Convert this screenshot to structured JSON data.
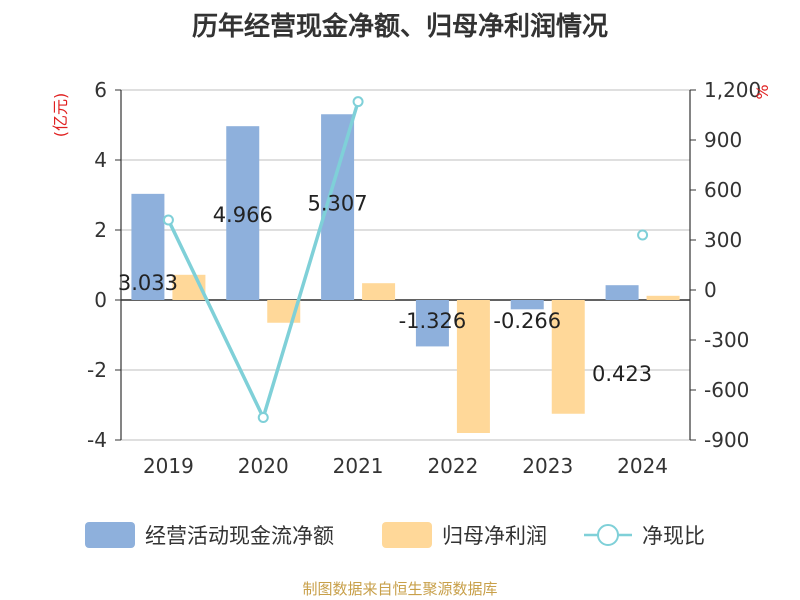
{
  "title": "历年经营现金净额、归母净利润情况",
  "source": "制图数据来自恒生聚源数据库",
  "chart_data": {
    "type": "bar",
    "title": "历年经营现金净额、归母净利润情况",
    "categories": [
      "2019",
      "2020",
      "2021",
      "2022",
      "2023",
      "2024"
    ],
    "left_axis": {
      "unit": "(亿元)",
      "ylim": [
        -4,
        6
      ],
      "ticks": [
        "-4",
        "-2",
        "0",
        "2",
        "4",
        "6"
      ]
    },
    "right_axis": {
      "unit": "%",
      "ylim": [
        -900,
        1200
      ],
      "ticks": [
        "-900",
        "-600",
        "-300",
        "0",
        "300",
        "600",
        "900",
        "1,200"
      ]
    },
    "grid": true,
    "legend_position": "bottom",
    "series": [
      {
        "name": "经营活动现金流净额",
        "kind": "bar",
        "axis": "left",
        "color": "#8eb0dc",
        "values": [
          3.033,
          4.966,
          5.307,
          -1.326,
          -0.266,
          0.423
        ],
        "labels": [
          "3.033",
          "4.966",
          "5.307",
          "-1.326",
          "-0.266",
          "0.423"
        ]
      },
      {
        "name": "归母净利润",
        "kind": "bar",
        "axis": "left",
        "color": "#ffd899",
        "values": [
          0.72,
          -0.65,
          0.48,
          -3.8,
          -3.25,
          0.12
        ]
      },
      {
        "name": "净现比",
        "kind": "line",
        "axis": "right",
        "color": "#7fd0d8",
        "values": [
          420,
          -765,
          1130,
          null,
          null,
          330
        ]
      }
    ]
  }
}
